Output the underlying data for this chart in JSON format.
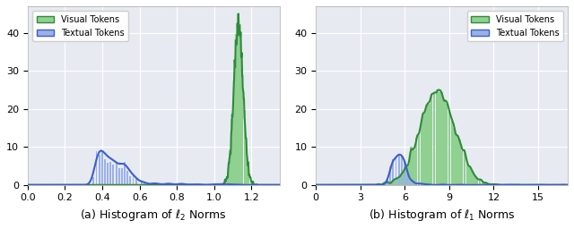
{
  "fig_width": 6.4,
  "fig_height": 2.56,
  "dpi": 100,
  "fig_facecolor": "#ffffff",
  "axes_facecolor": "#e8eaf2",
  "visual_color": "#2e8b3a",
  "visual_color_light": "#90d090",
  "textual_color": "#3a5fcd",
  "textual_color_light": "#9ab0e8",
  "subtitle_left": "(a) Histogram of $\\ell_2$ Norms",
  "subtitle_right": "(b) Histogram of $\\ell_1$ Norms",
  "legend_visual": "Visual Tokens",
  "legend_textual": "Textual Tokens",
  "ylim": [
    0,
    47
  ],
  "yticks": [
    0,
    10,
    20,
    30,
    40
  ],
  "xlim_left": [
    0.0,
    1.35
  ],
  "xlim_right": [
    0,
    17
  ],
  "xticks_left": [
    0.0,
    0.2,
    0.4,
    0.6,
    0.8,
    1.0,
    1.2
  ],
  "xticks_right": [
    0,
    3,
    6,
    9,
    12,
    15
  ],
  "scale_v_l2": 45.0,
  "scale_t_l2": 9.0,
  "scale_v_l1": 25.0,
  "scale_t_l1": 8.0,
  "grid_color": "#ffffff",
  "grid_lw": 0.8,
  "legend_fontsize": 7,
  "tick_labelsize": 8,
  "subtitle_fontsize": 9
}
